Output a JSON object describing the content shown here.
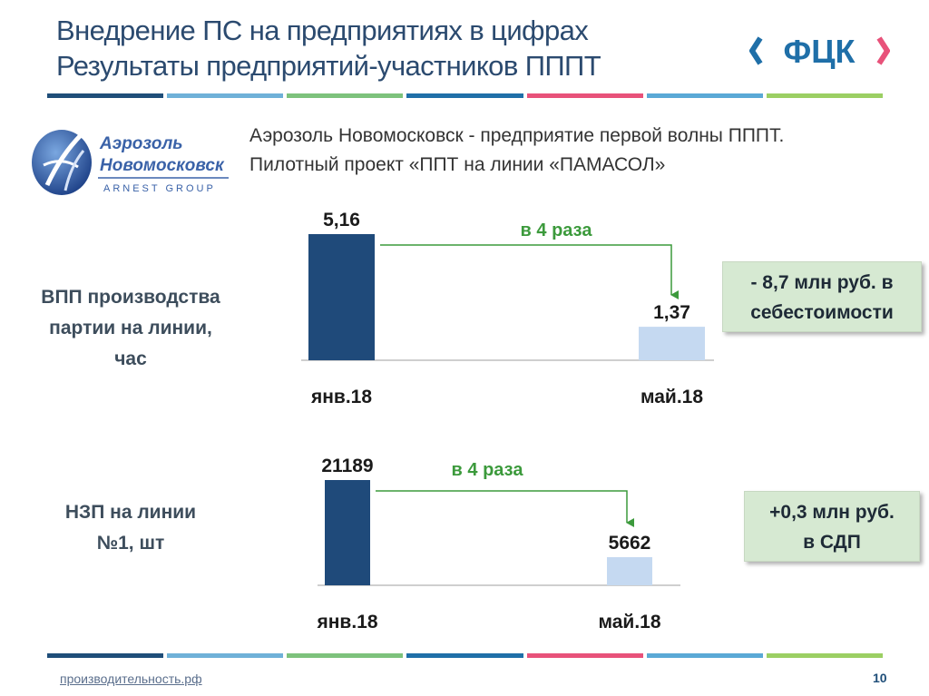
{
  "header": {
    "title_line1": "Внедрение ПС на предприятиях в цифрах",
    "title_line2": "Результаты предприятий-участников ПППТ",
    "brand_logo_text": "ФЦК",
    "stripe_colors": [
      "#1f4e79",
      "#6fb1d8",
      "#7dc27c",
      "#1f6fa8",
      "#e8527a",
      "#5aa9d6",
      "#9bcf63"
    ]
  },
  "company_logo": {
    "line1": "Аэрозоль",
    "line2": "Новомосковск",
    "line3": "ARNEST GROUP"
  },
  "subtitle": {
    "line1": "Аэрозоль Новомосковск - предприятие первой волны ПППТ.",
    "line2": "Пилотный проект «ППТ на линии «ПАМАСОЛ»"
  },
  "metric1": {
    "label_line1": "ВПП производства",
    "label_line2": "партии на линии,",
    "label_line3": "час"
  },
  "metric2": {
    "label_line1": "НЗП на линии",
    "label_line2": "№1, шт"
  },
  "box1": {
    "line1": "- 8,7 млн руб. в",
    "line2": "себестоимости"
  },
  "box2": {
    "line1": "+0,3 млн руб.",
    "line2": "в СДП"
  },
  "footer": {
    "link": "производительность.рф",
    "page": "10"
  },
  "colors": {
    "bar_dark": "#1f4a7a",
    "bar_light": "#c5d9f1",
    "arrow_green": "#3c9a3c",
    "text_dark": "#1a1a1a"
  },
  "chart_data": [
    {
      "type": "bar",
      "categories": [
        "янв.18",
        "май.18"
      ],
      "values": [
        5.16,
        1.37
      ],
      "value_labels": [
        "5,16",
        "1,37"
      ],
      "ratio_label": "в 4 раза"
    },
    {
      "type": "bar",
      "categories": [
        "янв.18",
        "май.18"
      ],
      "values": [
        21189,
        5662
      ],
      "value_labels": [
        "21189",
        "5662"
      ],
      "ratio_label": "в 4 раза"
    }
  ]
}
